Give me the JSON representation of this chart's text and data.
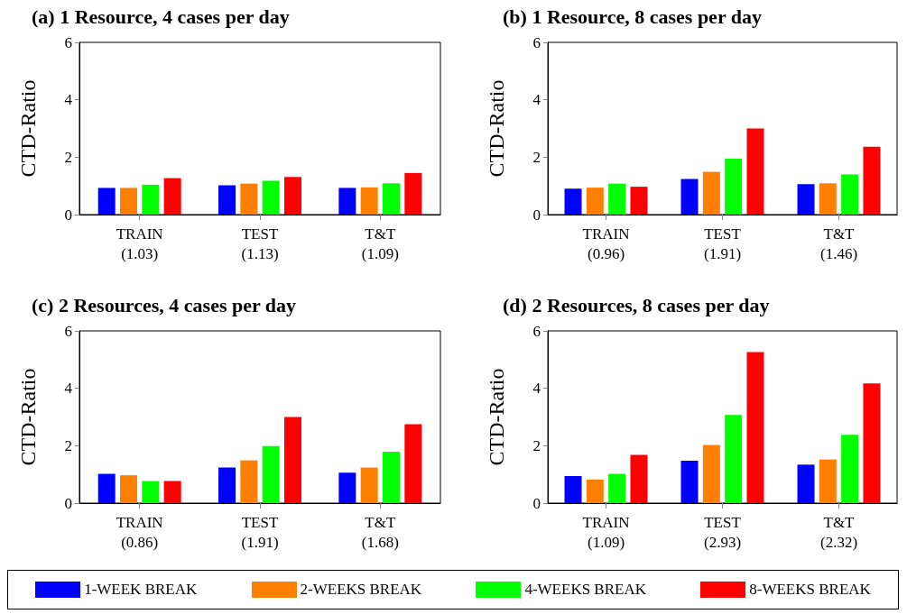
{
  "chart_data": [
    {
      "type": "bar",
      "title": "(a) 1 Resource, 4 cases per day",
      "ylabel": "CTD-Ratio",
      "categories": [
        "TRAIN\n(1.03)",
        "TEST\n(1.13)",
        "T&T\n(1.09)"
      ],
      "ylim": [
        0,
        6
      ],
      "yticks": [
        0,
        2,
        4,
        6
      ],
      "grid": false,
      "legend": "bottom",
      "series": [
        {
          "name": "1-WEEK BREAK",
          "color": "#0000ff",
          "values": [
            0.93,
            1.02,
            0.93
          ]
        },
        {
          "name": "2-WEEKS BREAK",
          "color": "#ff8000",
          "values": [
            0.93,
            1.08,
            0.95
          ]
        },
        {
          "name": "4-WEEKS BREAK",
          "color": "#00ff00",
          "values": [
            1.04,
            1.18,
            1.09
          ]
        },
        {
          "name": "8-WEEKS BREAK",
          "color": "#ff0000",
          "values": [
            1.27,
            1.31,
            1.45
          ]
        }
      ]
    },
    {
      "type": "bar",
      "title": "(b) 1 Resource, 8 cases per day",
      "ylabel": "CTD-Ratio",
      "categories": [
        "TRAIN\n(0.96)",
        "TEST\n(1.91)",
        "T&T\n(1.46)"
      ],
      "ylim": [
        0,
        6
      ],
      "yticks": [
        0,
        2,
        4,
        6
      ],
      "grid": false,
      "series": [
        {
          "color": "#0000ff",
          "values": [
            0.9,
            1.24,
            1.06
          ]
        },
        {
          "color": "#ff8000",
          "values": [
            0.94,
            1.49,
            1.09
          ]
        },
        {
          "color": "#00ff00",
          "values": [
            1.08,
            1.95,
            1.4
          ]
        },
        {
          "color": "#ff0000",
          "values": [
            0.97,
            3.0,
            2.36
          ]
        }
      ]
    },
    {
      "type": "bar",
      "title": "(c) 2 Resources, 4 cases per day",
      "ylabel": "CTD-Ratio",
      "categories": [
        "TRAIN\n(0.86)",
        "TEST\n(1.91)",
        "T&T\n(1.68)"
      ],
      "ylim": [
        0,
        6
      ],
      "yticks": [
        0,
        2,
        4,
        6
      ],
      "grid": false,
      "series": [
        {
          "color": "#0000ff",
          "values": [
            1.02,
            1.24,
            1.06
          ]
        },
        {
          "color": "#ff8000",
          "values": [
            0.97,
            1.49,
            1.24
          ]
        },
        {
          "color": "#00ff00",
          "values": [
            0.77,
            1.99,
            1.79
          ]
        },
        {
          "color": "#ff0000",
          "values": [
            0.77,
            3.0,
            2.75
          ]
        }
      ]
    },
    {
      "type": "bar",
      "title": "(d) 2 Resources, 8 cases per day",
      "ylabel": "CTD-Ratio",
      "categories": [
        "TRAIN\n(1.09)",
        "TEST\n(2.93)",
        "T&T\n(2.32)"
      ],
      "ylim": [
        0,
        6
      ],
      "yticks": [
        0,
        2,
        4,
        6
      ],
      "grid": false,
      "series": [
        {
          "color": "#0000ff",
          "values": [
            0.94,
            1.48,
            1.34
          ]
        },
        {
          "color": "#ff8000",
          "values": [
            0.82,
            2.03,
            1.52
          ]
        },
        {
          "color": "#00ff00",
          "values": [
            1.02,
            3.07,
            2.38
          ]
        },
        {
          "color": "#ff0000",
          "values": [
            1.68,
            5.26,
            4.17
          ]
        }
      ]
    }
  ]
}
